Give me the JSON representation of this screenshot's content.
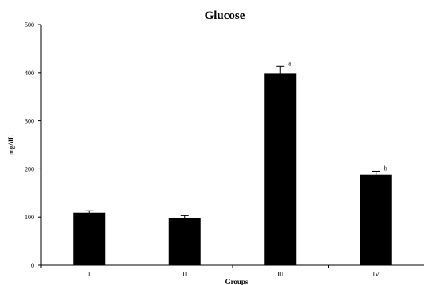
{
  "chart_data": {
    "type": "bar",
    "title": "Glucose",
    "xlabel": "Groups",
    "ylabel": "mg/dL",
    "categories": [
      "I",
      "II",
      "III",
      "IV"
    ],
    "values": [
      109,
      98,
      399,
      188
    ],
    "errors": [
      4,
      5,
      15,
      7
    ],
    "annotations": [
      "",
      "",
      "a",
      "b"
    ],
    "ylim": [
      0,
      500
    ],
    "yticks": [
      0,
      100,
      200,
      300,
      400,
      500
    ],
    "ytick_labels": [
      "0",
      "100",
      "200",
      "300",
      "400",
      "500"
    ],
    "grid": false,
    "bar_color": "#000000"
  }
}
